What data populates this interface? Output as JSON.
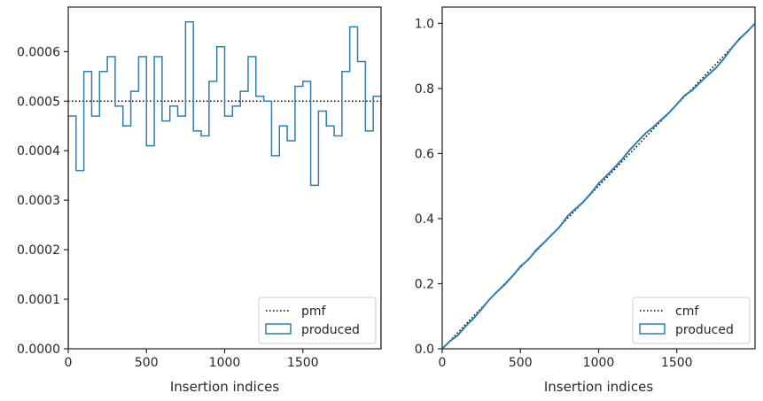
{
  "colors": {
    "produced": "#2f7fb0",
    "reference": "#000000",
    "spine": "#262626",
    "legend_border": "#cccccc"
  },
  "chart_data": [
    {
      "type": "step",
      "xlabel": "Insertion indices",
      "ylabel": "",
      "xlim": [
        0,
        2000
      ],
      "ylim": [
        0,
        0.00069
      ],
      "xticks": [
        0,
        500,
        1000,
        1500
      ],
      "xtick_labels": [
        "0",
        "500",
        "1000",
        "1500"
      ],
      "yticks": [
        0,
        0.0001,
        0.0002,
        0.0003,
        0.0004,
        0.0005,
        0.0006
      ],
      "ytick_labels": [
        "0.0000",
        "0.0001",
        "0.0002",
        "0.0003",
        "0.0004",
        "0.0005",
        "0.0006"
      ],
      "legend_position": "lower right",
      "grid": false,
      "series": [
        {
          "name": "pmf",
          "style": "dotted",
          "x": [
            0,
            2000
          ],
          "values": [
            0.0005,
            0.0005
          ]
        },
        {
          "name": "produced",
          "style": "step",
          "bin_width": 50,
          "bin_edges_start": 0,
          "values": [
            0.00047,
            0.00036,
            0.00056,
            0.00047,
            0.00056,
            0.00059,
            0.00049,
            0.00045,
            0.00052,
            0.00059,
            0.00041,
            0.00059,
            0.00046,
            0.00049,
            0.00047,
            0.00066,
            0.00044,
            0.00043,
            0.00054,
            0.00061,
            0.00047,
            0.00049,
            0.00052,
            0.00059,
            0.00051,
            0.0005,
            0.00039,
            0.00045,
            0.00042,
            0.00053,
            0.00054,
            0.00033,
            0.00048,
            0.00045,
            0.00043,
            0.00056,
            0.00065,
            0.00058,
            0.00044,
            0.00051
          ]
        }
      ]
    },
    {
      "type": "line",
      "xlabel": "Insertion indices",
      "ylabel": "",
      "xlim": [
        0,
        2000
      ],
      "ylim": [
        0,
        1.05
      ],
      "xticks": [
        0,
        500,
        1000,
        1500
      ],
      "xtick_labels": [
        "0",
        "500",
        "1000",
        "1500"
      ],
      "yticks": [
        0,
        0.2,
        0.4,
        0.6,
        0.8,
        1.0
      ],
      "ytick_labels": [
        "0.0",
        "0.2",
        "0.4",
        "0.6",
        "0.8",
        "1.0"
      ],
      "legend_position": "lower right",
      "grid": false,
      "series": [
        {
          "name": "cmf",
          "style": "dotted",
          "x": [
            0,
            2000
          ],
          "values": [
            0,
            1.0
          ]
        },
        {
          "name": "produced",
          "style": "line",
          "x": [
            0,
            50,
            100,
            150,
            200,
            250,
            300,
            350,
            400,
            450,
            500,
            550,
            600,
            650,
            700,
            750,
            800,
            850,
            900,
            950,
            1000,
            1050,
            1100,
            1150,
            1200,
            1250,
            1300,
            1350,
            1400,
            1450,
            1500,
            1550,
            1600,
            1650,
            1700,
            1750,
            1800,
            1850,
            1900,
            1950,
            2000
          ],
          "values": [
            0,
            0.0235,
            0.0415,
            0.0695,
            0.093,
            0.121,
            0.1505,
            0.175,
            0.1975,
            0.2235,
            0.253,
            0.2735,
            0.303,
            0.326,
            0.3505,
            0.374,
            0.407,
            0.429,
            0.4505,
            0.4775,
            0.508,
            0.5315,
            0.556,
            0.582,
            0.6115,
            0.637,
            0.662,
            0.6815,
            0.704,
            0.725,
            0.7515,
            0.7785,
            0.795,
            0.819,
            0.8415,
            0.863,
            0.891,
            0.9235,
            0.9525,
            0.9745,
            1.0
          ]
        }
      ]
    }
  ]
}
